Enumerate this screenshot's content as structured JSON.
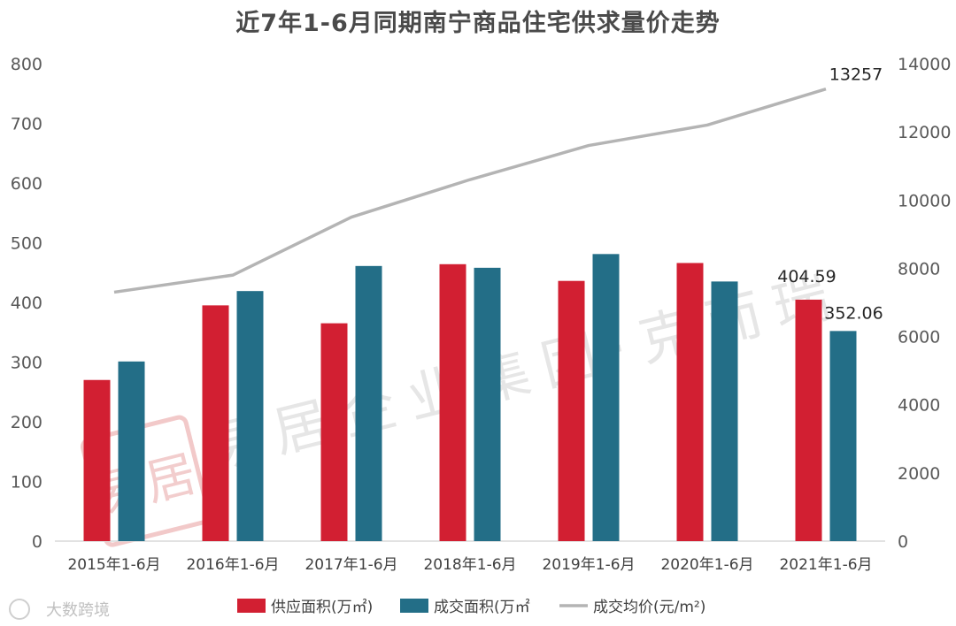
{
  "chart_data": {
    "type": "bar",
    "title": "近7年1-6月同期南宁商品住宅供求量价走势",
    "categories": [
      "2015年1-6月",
      "2016年1-6月",
      "2017年1-6月",
      "2018年1-6月",
      "2019年1-6月",
      "2020年1-6月",
      "2021年1-6月"
    ],
    "series": [
      {
        "name": "供应面积(万㎡)",
        "kind": "bar",
        "axis": "left",
        "color": "#d21f32",
        "values": [
          270,
          395,
          365,
          464,
          436,
          466,
          404.59
        ]
      },
      {
        "name": "成交面积(万㎡",
        "kind": "bar",
        "axis": "left",
        "color": "#236e87",
        "values": [
          301,
          419,
          461,
          458,
          481,
          435,
          352.06
        ]
      },
      {
        "name": "成交均价(元/m²)",
        "kind": "line",
        "axis": "right",
        "color": "#b4b4b4",
        "values": [
          7300,
          7800,
          9500,
          10600,
          11600,
          12200,
          13257
        ]
      }
    ],
    "left_axis": {
      "range": [
        0,
        800
      ],
      "ticks": [
        "0",
        "100",
        "200",
        "300",
        "400",
        "500",
        "600",
        "700",
        "800"
      ]
    },
    "right_axis": {
      "range": [
        0,
        14000
      ],
      "ticks": [
        "0",
        "2000",
        "4000",
        "6000",
        "8000",
        "10000",
        "12000",
        "14000"
      ]
    },
    "data_labels": {
      "bar_2021_supply": "404.59",
      "bar_2021_sold": "352.06",
      "line_2021": "13257"
    },
    "grid": false,
    "legend_position": "bottom"
  },
  "watermark": {
    "text": "易居企业集团·克而瑞",
    "seal_text": "易居"
  },
  "footer": {
    "source": "大数跨境"
  }
}
